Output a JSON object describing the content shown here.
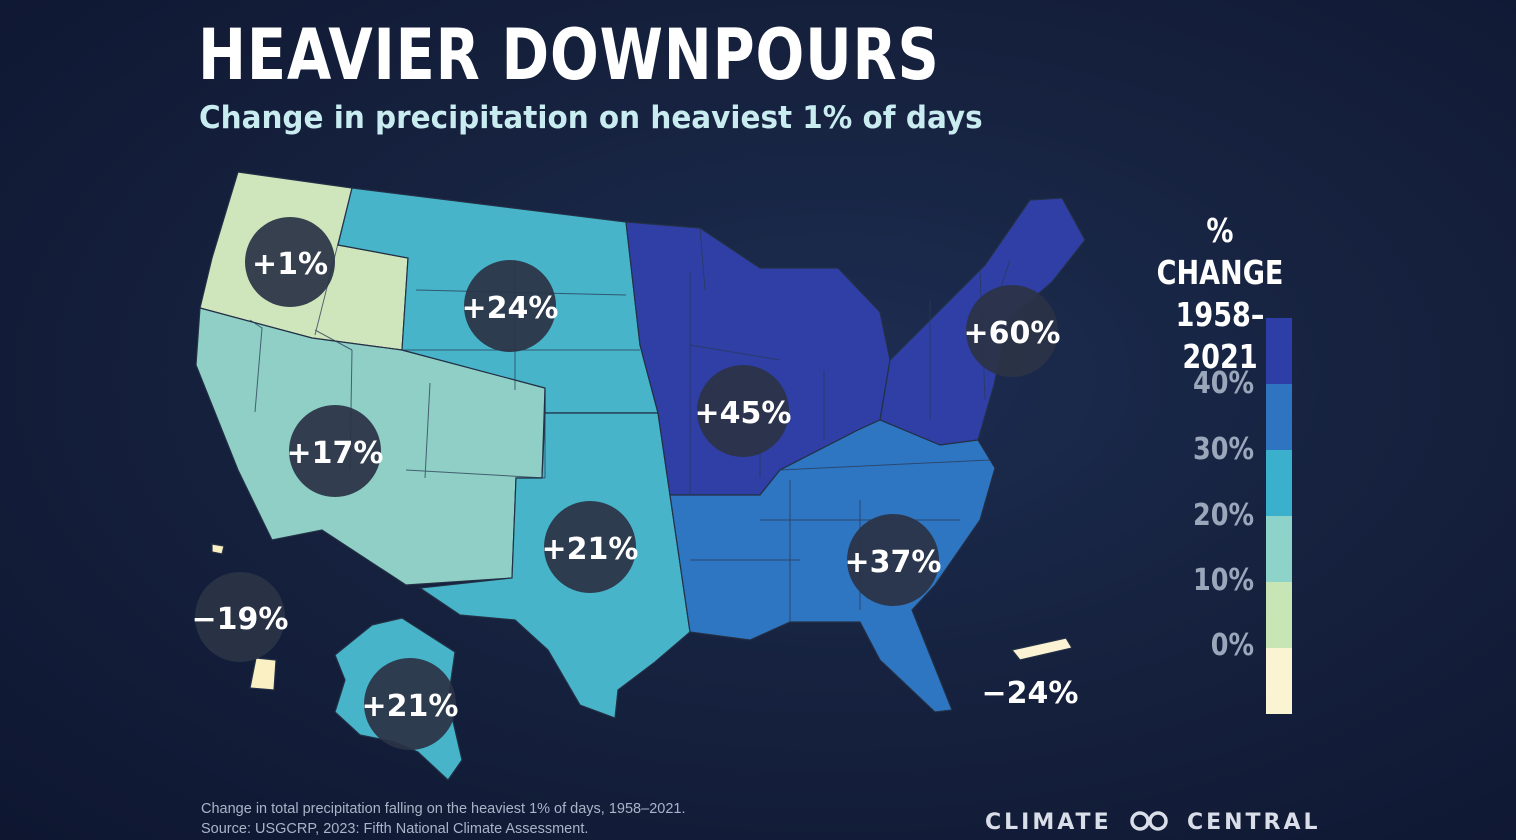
{
  "title": "HEAVIER DOWNPOURS",
  "subtitle": "Change in precipitation on heaviest 1% of days",
  "legend": {
    "title_line1": "% CHANGE",
    "title_line2": "1958–2021",
    "ticks": [
      "40%",
      "30%",
      "20%",
      "10%",
      "0%"
    ],
    "colors": [
      "#2d3ea6",
      "#2e74c0",
      "#3bb0cc",
      "#8ed3c9",
      "#c8e6b5",
      "#fbf4d2"
    ]
  },
  "regions": {
    "northwest": {
      "label": "+1%",
      "color": "#cfe6bc"
    },
    "southwest": {
      "label": "+17%",
      "color": "#8fcfc5"
    },
    "northern_great_plains": {
      "label": "+24%",
      "color": "#47b4c9"
    },
    "southern_great_plains": {
      "label": "+21%",
      "color": "#47b4c9"
    },
    "midwest": {
      "label": "+45%",
      "color": "#2f3fa6"
    },
    "northeast": {
      "label": "+60%",
      "color": "#2f3fa6"
    },
    "southeast": {
      "label": "+37%",
      "color": "#2f76c2"
    },
    "alaska": {
      "label": "+21%",
      "color": "#47b4c9"
    },
    "hawaii": {
      "label": "−19%",
      "color": "#faf0c4"
    },
    "puerto_rico": {
      "label": "−24%",
      "color": "#fbf3d3"
    }
  },
  "footnote": {
    "line1": "Change in total precipitation falling on the heaviest 1% of days, 1958–2021.",
    "line2": "Source: USGCRP, 2023: Fifth National Climate Assessment."
  },
  "brand": {
    "left": "CLIMATE",
    "right": "CENTRAL"
  }
}
